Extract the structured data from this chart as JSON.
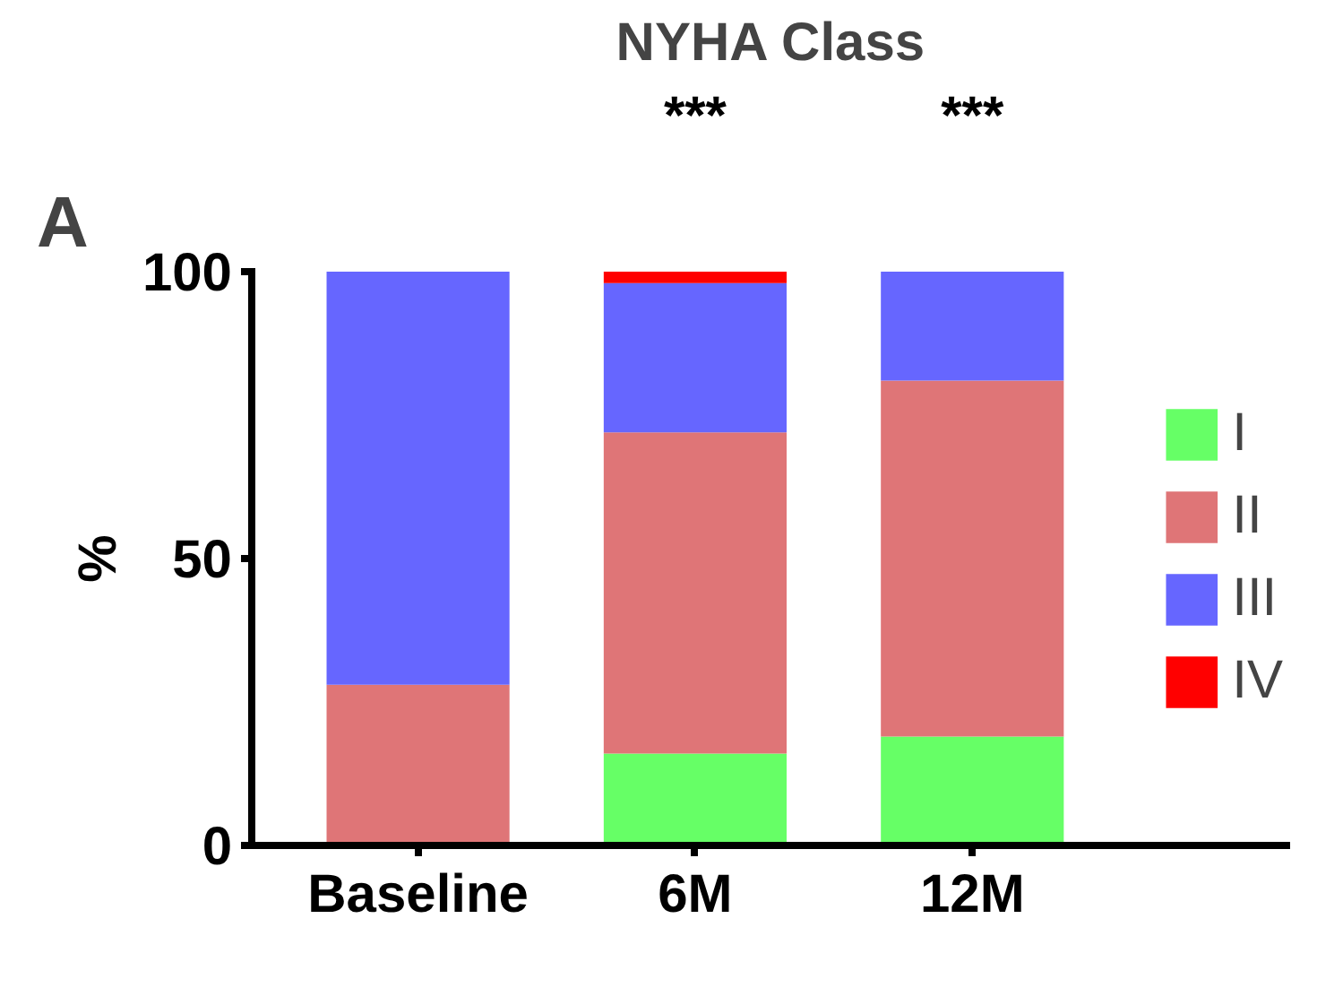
{
  "chart_data": {
    "type": "bar",
    "stacked": true,
    "title": "NYHA Class",
    "ylabel": "%",
    "categories": [
      "Baseline",
      "6M",
      "12M"
    ],
    "series": [
      {
        "name": "I",
        "color": "#66ff66",
        "values": [
          0,
          16,
          19
        ]
      },
      {
        "name": "II",
        "color": "#df7577",
        "values": [
          28,
          56,
          62
        ]
      },
      {
        "name": "III",
        "color": "#6666ff",
        "values": [
          72,
          26,
          19
        ]
      },
      {
        "name": "IV",
        "color": "#ff0000",
        "values": [
          0,
          2,
          0
        ]
      }
    ],
    "ylim": [
      0,
      100
    ],
    "yticks": [
      0,
      50,
      100
    ],
    "grid": false,
    "legend": "right",
    "annotations": [
      "A",
      {
        "text": "***",
        "x": "6M",
        "y": 100
      },
      {
        "text": "***",
        "x": "12M",
        "y": 100
      }
    ]
  }
}
